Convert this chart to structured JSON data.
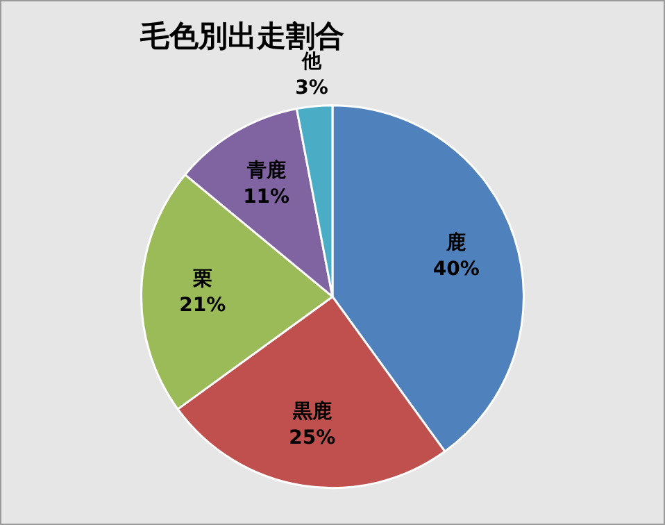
{
  "chart_data": {
    "type": "pie",
    "title": "毛色別出走割合",
    "categories": [
      "鹿",
      "黒鹿",
      "栗",
      "青鹿",
      "他"
    ],
    "values": [
      40,
      25,
      21,
      11,
      3
    ],
    "value_labels": [
      "40%",
      "25%",
      "21%",
      "11%",
      "3%"
    ],
    "colors": [
      "#4f81bd",
      "#c0504d",
      "#9bbb59",
      "#8064a2",
      "#4bacc6"
    ],
    "legend": false
  }
}
